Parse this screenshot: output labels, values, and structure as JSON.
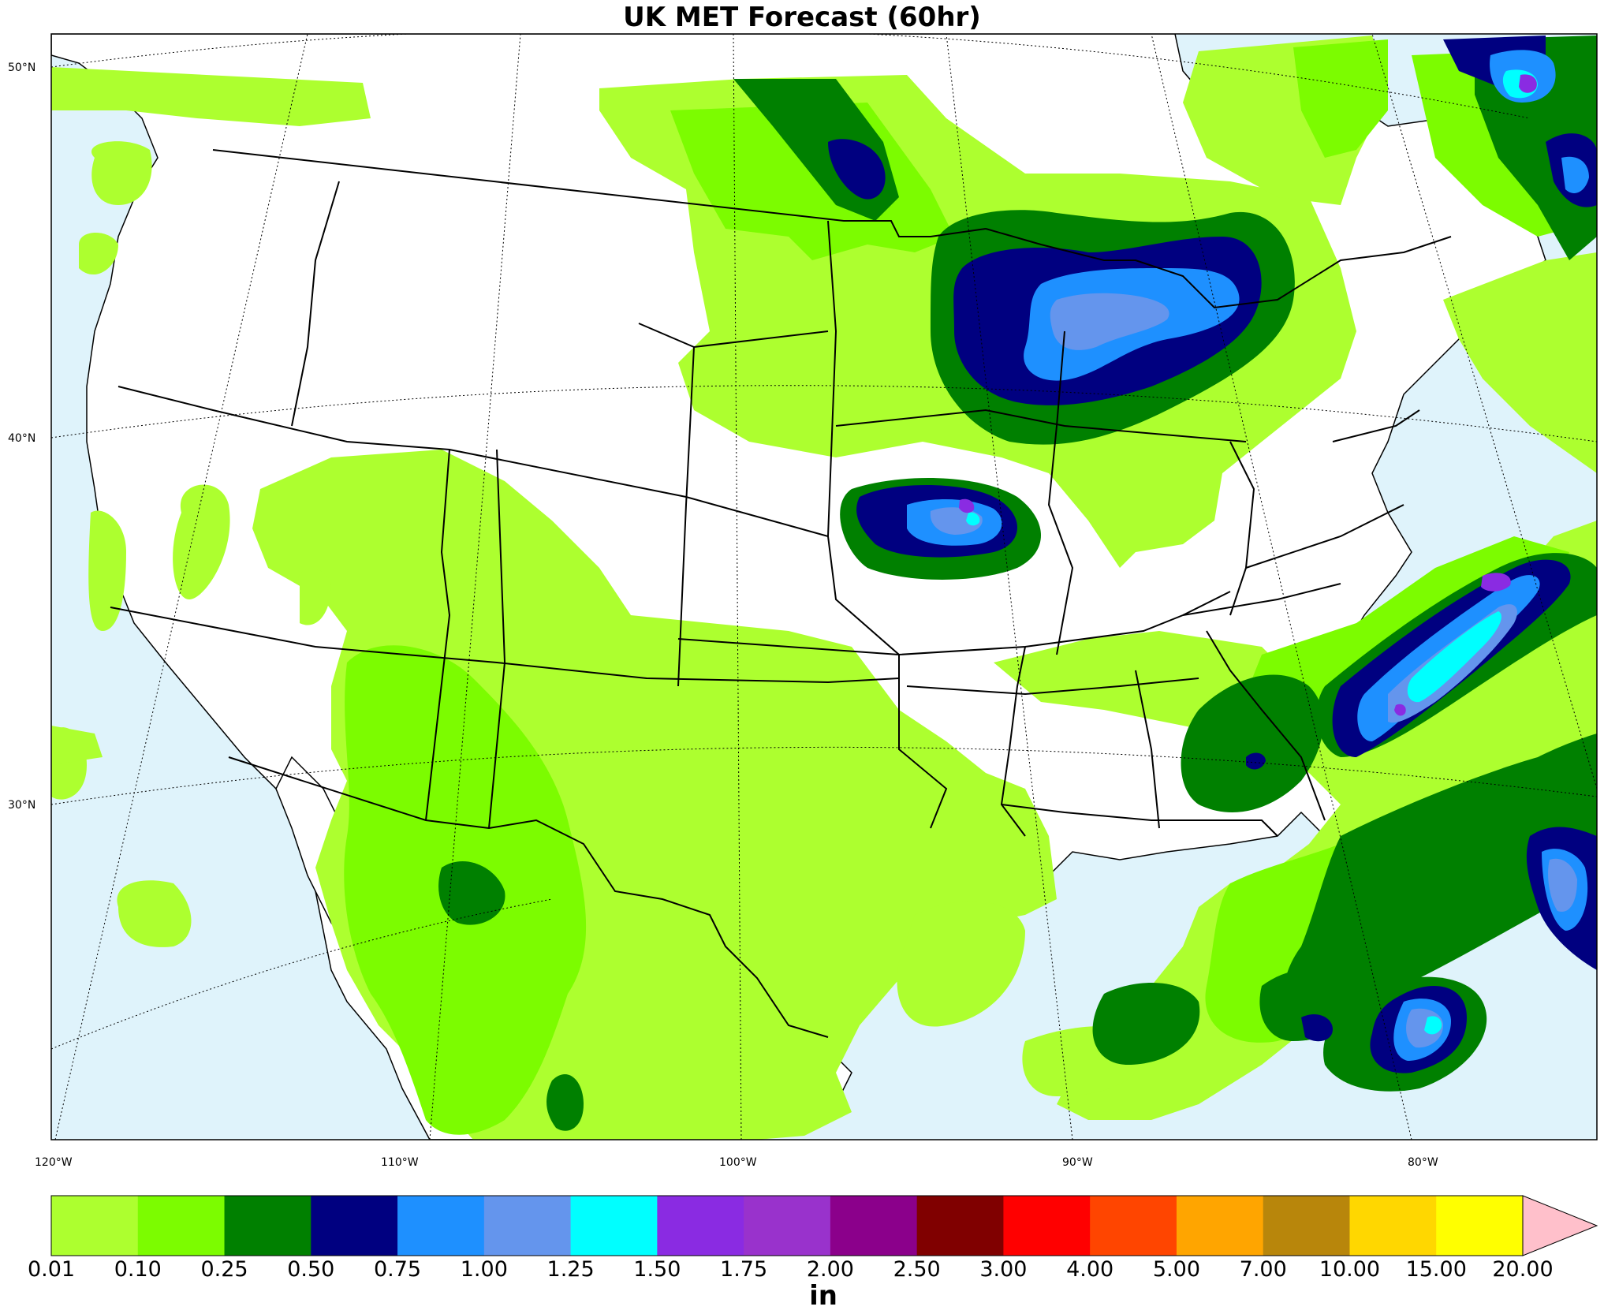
{
  "title": "UK MET Forecast (60hr)",
  "map": {
    "lat_labels": [
      "50°N",
      "40°N",
      "30°N"
    ],
    "lon_labels": [
      "120°W",
      "110°W",
      "100°W",
      "90°W",
      "80°W"
    ],
    "colors": {
      "ocean": "#dff3fb",
      "land": "#ffffff",
      "border": "#000000"
    }
  },
  "colorbar": {
    "units": "in",
    "labels": [
      "0.01",
      "0.10",
      "0.25",
      "0.50",
      "0.75",
      "1.00",
      "1.25",
      "1.50",
      "1.75",
      "2.00",
      "2.50",
      "3.00",
      "4.00",
      "5.00",
      "7.00",
      "10.00",
      "15.00",
      "20.00"
    ],
    "colors": [
      "#adff2f",
      "#7cfc00",
      "#008000",
      "#000080",
      "#1e90ff",
      "#6495ed",
      "#00ffff",
      "#8a2be2",
      "#9932cc",
      "#8b008b",
      "#800000",
      "#ff0000",
      "#ff4500",
      "#ffa500",
      "#b8860b",
      "#ffd700",
      "#ffff00"
    ],
    "extend_color": "#ffc0cb"
  }
}
